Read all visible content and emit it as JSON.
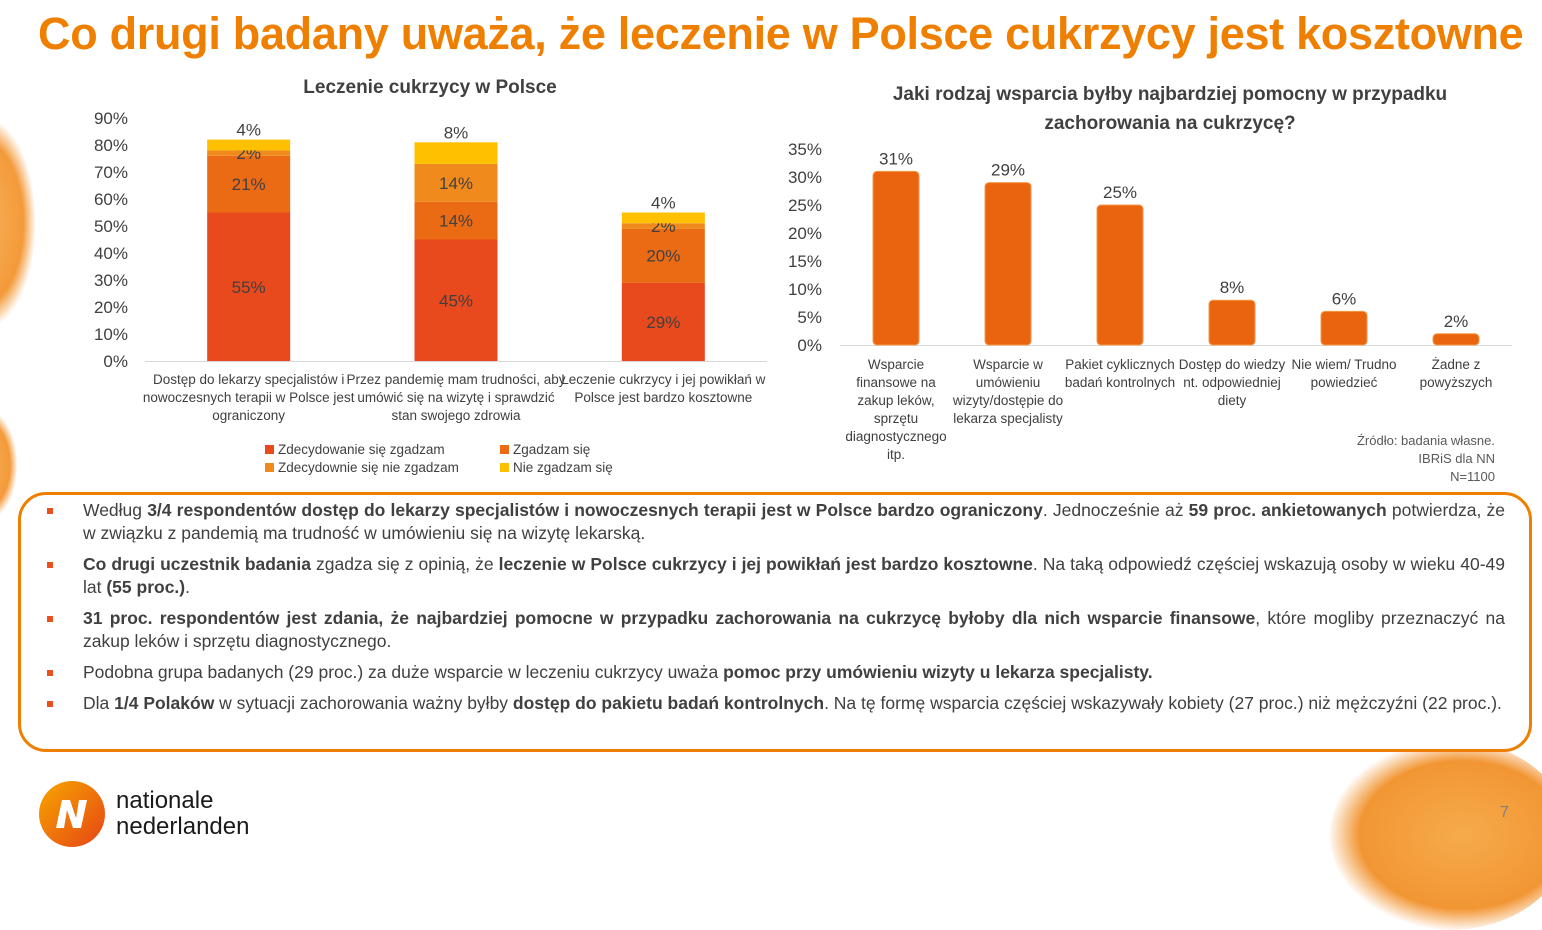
{
  "title": "Co drugi badany uważa, że leczenie w Polsce cukrzycy jest kosztowne",
  "colors": {
    "accent": "#ee7f00",
    "strongly_agree": "#e8491d",
    "agree": "#ea6b14",
    "disagree": "#f08a1c",
    "strongly_disagree": "#ffc000",
    "bar2": "#ea6410"
  },
  "chart_data": [
    {
      "type": "bar",
      "stacked": true,
      "title": "Leczenie cukrzycy w Polsce",
      "categories": [
        "Dostęp do lekarzy specjalistów i nowoczesnych terapii w Polsce jest ograniczony",
        "Przez pandemię mam trudności, aby umówić się na wizytę i sprawdzić stan swojego zdrowia",
        "Leczenie cukrzycy i jej powikłań w Polsce jest bardzo kosztowne"
      ],
      "series": [
        {
          "name": "Zdecydowanie się zgadzam",
          "values": [
            55,
            45,
            29
          ]
        },
        {
          "name": "Zgadzam się",
          "values": [
            21,
            14,
            20
          ]
        },
        {
          "name": "Zdecydownie się nie zgadzam",
          "values": [
            2,
            14,
            2
          ]
        },
        {
          "name": "Nie zgadzam się",
          "values": [
            4,
            8,
            4
          ]
        }
      ],
      "ylim": [
        0,
        90
      ],
      "yticks": [
        "0%",
        "10%",
        "20%",
        "30%",
        "40%",
        "50%",
        "60%",
        "70%",
        "80%",
        "90%"
      ],
      "grid": false,
      "legend_position": "bottom"
    },
    {
      "type": "bar",
      "title": "Jaki rodzaj wsparcia byłby najbardziej pomocny w przypadku zachorowania na cukrzycę?",
      "categories": [
        "Wsparcie finansowe na zakup leków, sprzętu diagnostycznego itp.",
        "Wsparcie w umówieniu wizyty/dostępie do lekarza specjalisty",
        "Pakiet cyklicznych badań kontrolnych",
        "Dostęp do wiedzy nt. odpowiedniej diety",
        "Nie wiem/ Trudno powiedzieć",
        "Żadne z powyższych"
      ],
      "values": [
        31,
        29,
        25,
        8,
        6,
        2
      ],
      "ylim": [
        0,
        35
      ],
      "yticks": [
        "0%",
        "5%",
        "10%",
        "15%",
        "20%",
        "25%",
        "30%",
        "35%"
      ],
      "grid": false
    }
  ],
  "source_note": [
    "Źródło: badania własne.",
    "IBRiS dla NN",
    "N=1100"
  ],
  "summary": [
    [
      {
        "t": "Według ",
        "b": false
      },
      {
        "t": "3/4 respondentów dostęp do lekarzy specjalistów i nowoczesnych terapii jest w Polsce bardzo ograniczony",
        "b": true
      },
      {
        "t": ". Jednocześnie aż ",
        "b": false
      },
      {
        "t": "59 proc. ankietowanych",
        "b": true
      },
      {
        "t": " potwierdza, że w związku z pandemią ma trudność w umówieniu się na wizytę lekarską.",
        "b": false
      }
    ],
    [
      {
        "t": "Co drugi uczestnik badania",
        "b": true
      },
      {
        "t": " zgadza się z opinią, że ",
        "b": false
      },
      {
        "t": "leczenie w Polsce cukrzycy i jej powikłań jest bardzo kosztowne",
        "b": true
      },
      {
        "t": ". Na taką odpowiedź częściej wskazują osoby w wieku 40-49 lat ",
        "b": false
      },
      {
        "t": "(55 proc.)",
        "b": true
      },
      {
        "t": ".",
        "b": false
      }
    ],
    [
      {
        "t": "31 proc. respondentów jest zdania, że najbardziej pomocne w przypadku zachorowania na cukrzycę byłoby dla nich wsparcie finansowe",
        "b": true
      },
      {
        "t": ", które mogliby przeznaczyć na zakup leków i sprzętu diagnostycznego.",
        "b": false
      }
    ],
    [
      {
        "t": "Podobna grupa badanych (29 proc.) za duże wsparcie w leczeniu cukrzycy uważa ",
        "b": false
      },
      {
        "t": "pomoc przy umówieniu wizyty u lekarza specjalisty.",
        "b": true
      }
    ],
    [
      {
        "t": "Dla ",
        "b": false
      },
      {
        "t": "1/4 Polaków",
        "b": true
      },
      {
        "t": " w sytuacji zachorowania ważny byłby ",
        "b": false
      },
      {
        "t": "dostęp do pakietu badań kontrolnych",
        "b": true
      },
      {
        "t": ". Na tę formę wsparcia częściej wskazywały kobiety (27 proc.) niż mężczyźni (22 proc.).",
        "b": false
      }
    ]
  ],
  "logo": {
    "line1": "nationale",
    "line2": "nederlanden"
  },
  "page_number": "7"
}
